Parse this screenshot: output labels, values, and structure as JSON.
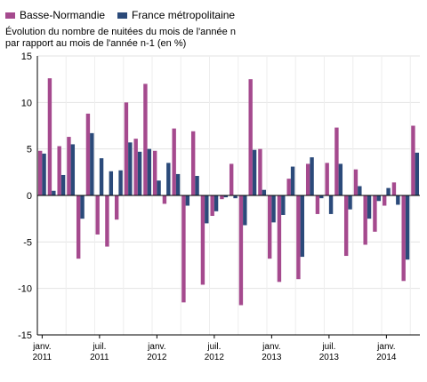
{
  "chart_data": {
    "type": "bar",
    "subtitle_lines": [
      "Évolution du nombre de nuitées du mois de l'année n",
      "par rapport au mois de l'année n-1 (en %)"
    ],
    "series": [
      {
        "name": "Basse-Normandie",
        "color": "#a54a8e",
        "values": [
          4.8,
          12.6,
          5.3,
          6.3,
          -6.8,
          8.8,
          -4.2,
          -5.5,
          -2.6,
          10.0,
          6.1,
          12.0,
          4.8,
          -0.9,
          7.2,
          -11.5,
          6.9,
          -9.6,
          -2.2,
          -0.4,
          3.4,
          -11.8,
          12.5,
          5.0,
          -6.8,
          -9.3,
          1.8,
          -9.0,
          3.4,
          -2.0,
          3.5,
          7.3,
          -6.5,
          2.8,
          -5.3,
          -3.9,
          -1.1,
          1.4,
          -9.2,
          7.5
        ]
      },
      {
        "name": "France métropolitaine",
        "color": "#2b4a7a",
        "values": [
          4.5,
          0.5,
          2.2,
          5.5,
          -2.5,
          6.7,
          4.0,
          2.6,
          2.7,
          5.7,
          4.7,
          5.0,
          1.6,
          3.5,
          2.3,
          -1.1,
          2.1,
          -3.0,
          -1.7,
          -0.2,
          -0.3,
          -3.2,
          4.9,
          0.6,
          -2.9,
          -2.1,
          3.1,
          -6.6,
          4.1,
          -0.3,
          -2.0,
          3.4,
          -1.5,
          1.0,
          -2.5,
          -0.6,
          0.8,
          -1.0,
          -6.9,
          4.6
        ]
      }
    ],
    "ylim": [
      -15,
      15
    ],
    "yticks": [
      -15,
      -10,
      -5,
      0,
      5,
      10,
      15
    ],
    "ytick_labels": [
      "-15",
      "-10",
      "-5",
      "0",
      "5",
      "10",
      "15"
    ],
    "xtick_labels": [
      {
        "index": 0,
        "line1": "janv.",
        "line2": "2011"
      },
      {
        "index": 6,
        "line1": "juil.",
        "line2": "2011"
      },
      {
        "index": 12,
        "line1": "janv.",
        "line2": "2012"
      },
      {
        "index": 18,
        "line1": "juil.",
        "line2": "2012"
      },
      {
        "index": 24,
        "line1": "janv.",
        "line2": "2013"
      },
      {
        "index": 30,
        "line1": "juil.",
        "line2": "2013"
      },
      {
        "index": 36,
        "line1": "janv.",
        "line2": "2014"
      }
    ],
    "grid": true,
    "legend_position": "top-left"
  }
}
